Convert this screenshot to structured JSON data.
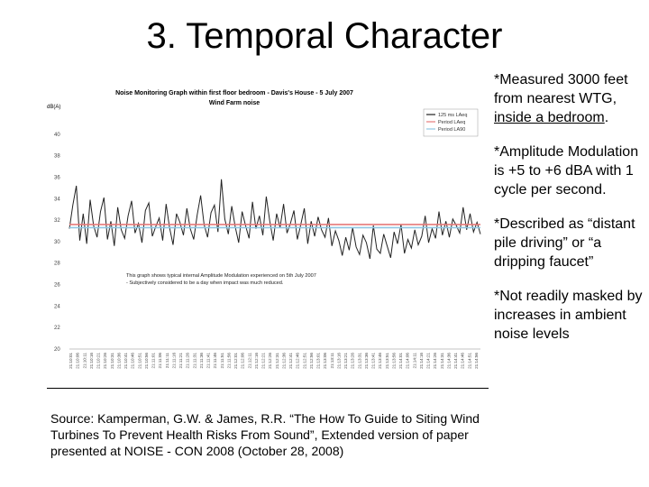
{
  "slide": {
    "title": "3. Temporal Character",
    "notes": [
      {
        "text": "*Measured 3000 feet from nearest WTG, ",
        "underline": "inside a bedroom",
        "tail": "."
      },
      {
        "text": "*Amplitude Modulation is +5 to +6 dBA with 1 cycle per second.",
        "underline": "",
        "tail": ""
      },
      {
        "text": "*Described as “distant pile driving” or “a dripping faucet”",
        "underline": "",
        "tail": ""
      },
      {
        "text": "*Not readily masked by increases in ambient noise levels",
        "underline": "",
        "tail": ""
      }
    ],
    "source": "Source: Kamperman, G.W. & James, R.R. “The How To Guide to Siting Wind Turbines To Prevent Health Risks From Sound”, Extended version of paper presented at NOISE - CON 2008 (October 28, 2008)"
  },
  "chart_data": {
    "type": "line",
    "title": "Noise Monitoring Graph within first floor bedroom - Davis's House - 5 July 2007",
    "subtitle": "Wind Farm noise",
    "ylabel": "dB(A)",
    "ylim": [
      20,
      42
    ],
    "yticks": [
      20,
      22,
      24,
      26,
      28,
      30,
      32,
      34,
      36,
      38,
      40
    ],
    "grid": false,
    "legend_position": "top-right",
    "x_tick_labels": [
      "21:10:01",
      "21:10:06",
      "21:10:11",
      "21:10:16",
      "21:10:21",
      "21:10:26",
      "21:10:31",
      "21:10:36",
      "21:10:41",
      "21:10:46",
      "21:10:51",
      "21:10:56",
      "21:11:01",
      "21:11:06",
      "21:11:11",
      "21:11:16",
      "21:11:21",
      "21:11:26",
      "21:11:31",
      "21:11:36",
      "21:11:41",
      "21:11:46",
      "21:11:51",
      "21:11:56",
      "21:12:01",
      "21:12:06",
      "21:12:11",
      "21:12:16",
      "21:12:21",
      "21:12:26",
      "21:12:31",
      "21:12:36",
      "21:12:41",
      "21:12:46",
      "21:12:51",
      "21:12:56",
      "21:13:01",
      "21:13:06",
      "21:13:11",
      "21:13:16",
      "21:13:21",
      "21:13:26",
      "21:13:31",
      "21:13:36",
      "21:13:41",
      "21:13:46",
      "21:13:51",
      "21:13:56",
      "21:14:01",
      "21:14:06",
      "21:14:11",
      "21:14:16",
      "21:14:21",
      "21:14:26",
      "21:14:31",
      "21:14:36",
      "21:14:41",
      "21:14:46",
      "21:14:51",
      "21:14:56"
    ],
    "series": [
      {
        "name": "125 ms LAeq",
        "color": "#222222",
        "values": [
          31.2,
          33.4,
          35.2,
          30.1,
          32.6,
          29.8,
          33.9,
          31.5,
          30.4,
          32.8,
          34.1,
          30.2,
          31.9,
          29.6,
          33.2,
          31.1,
          30.3,
          32.4,
          33.8,
          30.8,
          31.7,
          29.9,
          32.9,
          33.6,
          30.5,
          31.4,
          32.2,
          30.1,
          33.5,
          31.3,
          29.7,
          32.6,
          31.8,
          30.6,
          33.1,
          31.2,
          30.2,
          32.5,
          34.3,
          31.6,
          30.4,
          32.7,
          33.4,
          30.9,
          35.8,
          32.1,
          30.7,
          33.3,
          31.4,
          29.9,
          32.8,
          31.5,
          30.3,
          33.7,
          31.2,
          32.4,
          30.6,
          34.2,
          31.9,
          30.1,
          32.6,
          31.3,
          33.5,
          30.8,
          31.7,
          32.9,
          30.2,
          31.6,
          33.1,
          29.8,
          31.9,
          30.5,
          32.3,
          31.1,
          30.4,
          32.2,
          29.6,
          31.0,
          30.1,
          28.7,
          30.4,
          29.2,
          31.3,
          29.5,
          28.8,
          30.6,
          29.9,
          28.4,
          31.5,
          29.3,
          28.9,
          30.7,
          29.6,
          28.5,
          30.9,
          29.8,
          31.6,
          28.9,
          30.2,
          29.4,
          31.1,
          29.7,
          30.5,
          32.4,
          29.9,
          31.2,
          30.3,
          32.8,
          30.6,
          31.9,
          30.4,
          32.1,
          31.5,
          30.8,
          33.2,
          31.1,
          32.6,
          30.9,
          31.8,
          30.7
        ]
      },
      {
        "name": "Period LAeq",
        "color": "#e57a7a",
        "values": [
          31.6,
          31.6
        ]
      },
      {
        "name": "Period LA90",
        "color": "#8fc6e3",
        "values": [
          31.3,
          31.3
        ]
      }
    ],
    "annotation": "This graph shows typical internal Amplitude Modulation experienced on 5th July 2007 - Subjectively considered to be a day when impact was much reduced."
  }
}
